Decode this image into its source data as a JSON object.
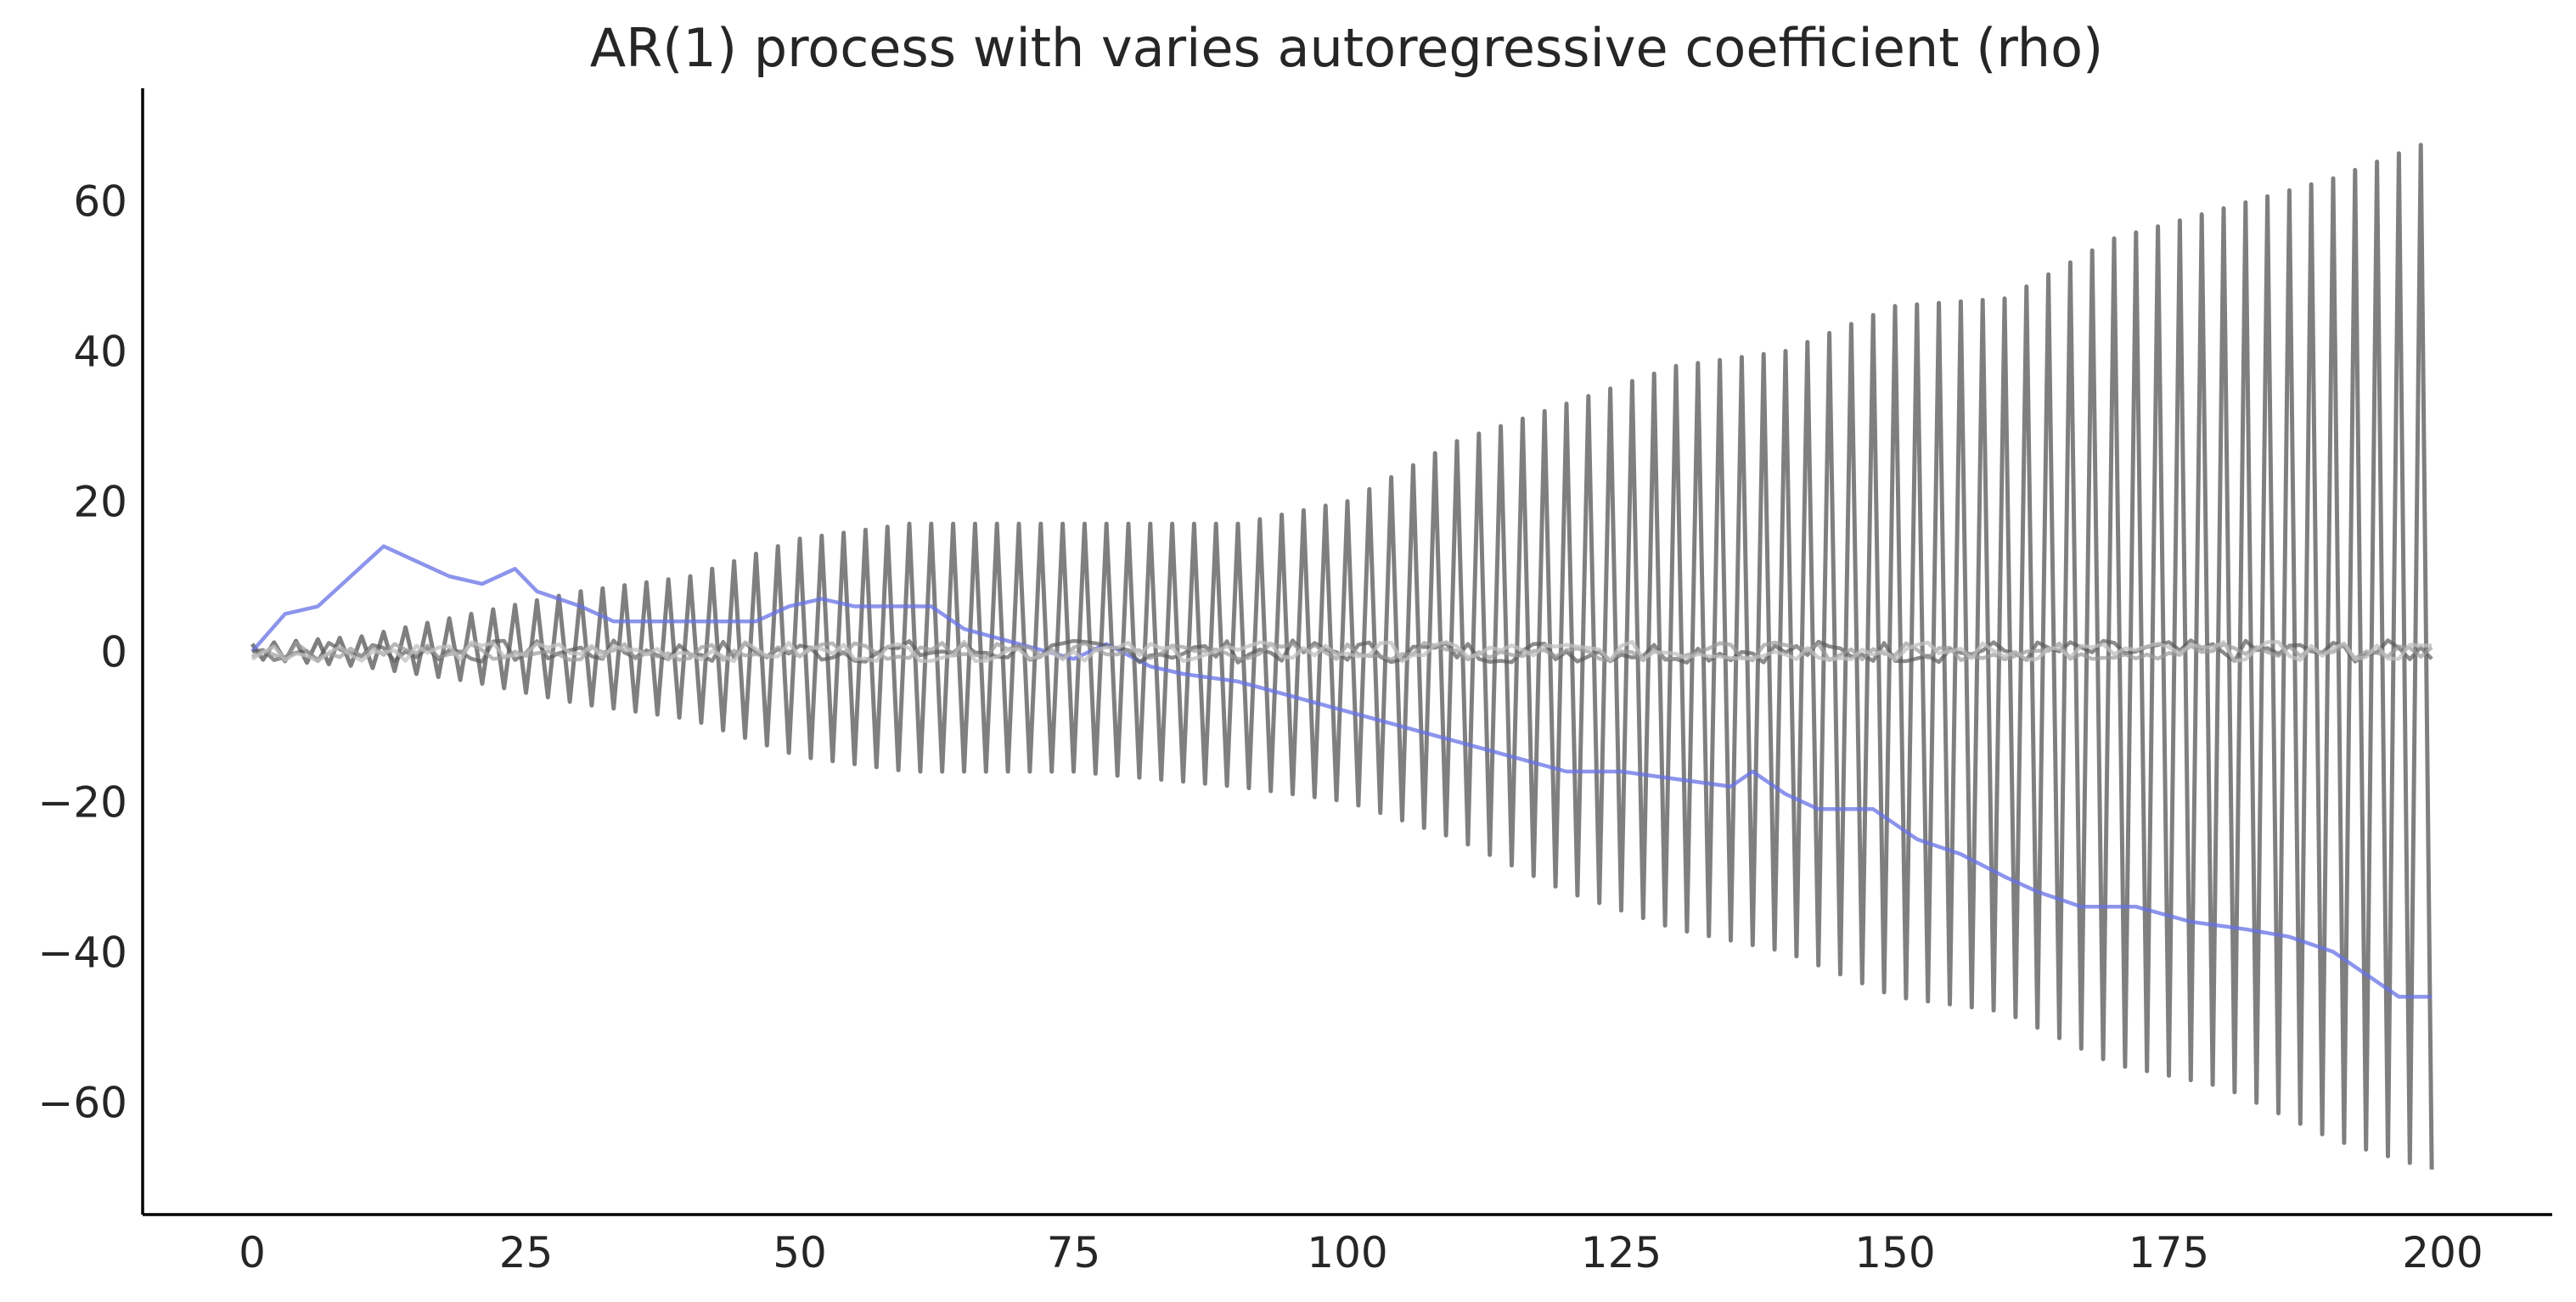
{
  "chart_data": {
    "type": "line",
    "title": "AR(1) process with varies autoregressive coefficient (rho)",
    "xlabel": "",
    "ylabel": "",
    "xlim": [
      -10,
      210
    ],
    "ylim": [
      -75,
      75
    ],
    "xticks": [
      0,
      25,
      50,
      75,
      100,
      125,
      150,
      175,
      200
    ],
    "xtick_labels": [
      "0",
      "25",
      "50",
      "75",
      "100",
      "125",
      "150",
      "175",
      "200"
    ],
    "yticks": [
      60,
      40,
      20,
      0,
      -20,
      -40,
      -60
    ],
    "ytick_labels": [
      "60",
      "40",
      "20",
      "0",
      "−20",
      "−40",
      "−60"
    ],
    "grid": false,
    "legend": "none",
    "n_points": 200,
    "series": [
      {
        "style": "oscillating",
        "color": "#7f7f7f",
        "alpha": 1.0,
        "description_values": "alternating sign, growing amplitude",
        "envelope_x": [
          0,
          10,
          20,
          30,
          40,
          50,
          60,
          75,
          90,
          100,
          110,
          120,
          130,
          140,
          150,
          160,
          170,
          180,
          190,
          199
        ],
        "envelope_upper": [
          1,
          2,
          5,
          8,
          10,
          15,
          17,
          17,
          17,
          20,
          28,
          33,
          38,
          40,
          46,
          47,
          55,
          59,
          63,
          68
        ],
        "envelope_lower": [
          -1,
          -2,
          -4,
          -7,
          -9,
          -14,
          -16,
          -16,
          -18,
          -20,
          -25,
          -32,
          -37,
          -40,
          -46,
          -48,
          -55,
          -58,
          -65,
          -69
        ]
      },
      {
        "style": "random-walk",
        "color": "#6670e6",
        "alpha": 0.75,
        "x": [
          0,
          3,
          6,
          9,
          12,
          15,
          18,
          21,
          24,
          26,
          30,
          33,
          36,
          40,
          43,
          46,
          49,
          52,
          55,
          58,
          62,
          65,
          70,
          75,
          78,
          82,
          85,
          90,
          95,
          100,
          105,
          110,
          115,
          120,
          125,
          130,
          135,
          137,
          140,
          143,
          148,
          152,
          156,
          160,
          163,
          167,
          172,
          177,
          182,
          186,
          190,
          193,
          196,
          199
        ],
        "y": [
          0,
          5,
          6,
          10,
          14,
          12,
          10,
          9,
          11,
          8,
          6,
          4,
          4,
          4,
          4,
          4,
          6,
          7,
          6,
          6,
          6,
          3,
          1,
          -1,
          1,
          -2,
          -3,
          -4,
          -6,
          -8,
          -10,
          -12,
          -14,
          -16,
          -16,
          -17,
          -18,
          -16,
          -19,
          -21,
          -21,
          -25,
          -27,
          -30,
          -32,
          -34,
          -34,
          -36,
          -37,
          -38,
          -40,
          -43,
          -46,
          -46
        ]
      },
      {
        "style": "noise",
        "color": "#5a5a5a",
        "alpha": 0.7,
        "amplitude": 1.5
      },
      {
        "style": "noise",
        "color": "#9a9a9a",
        "alpha": 0.7,
        "amplitude": 1.2
      },
      {
        "style": "noise",
        "color": "#bfbfbf",
        "alpha": 0.75,
        "amplitude": 1.3
      }
    ]
  }
}
